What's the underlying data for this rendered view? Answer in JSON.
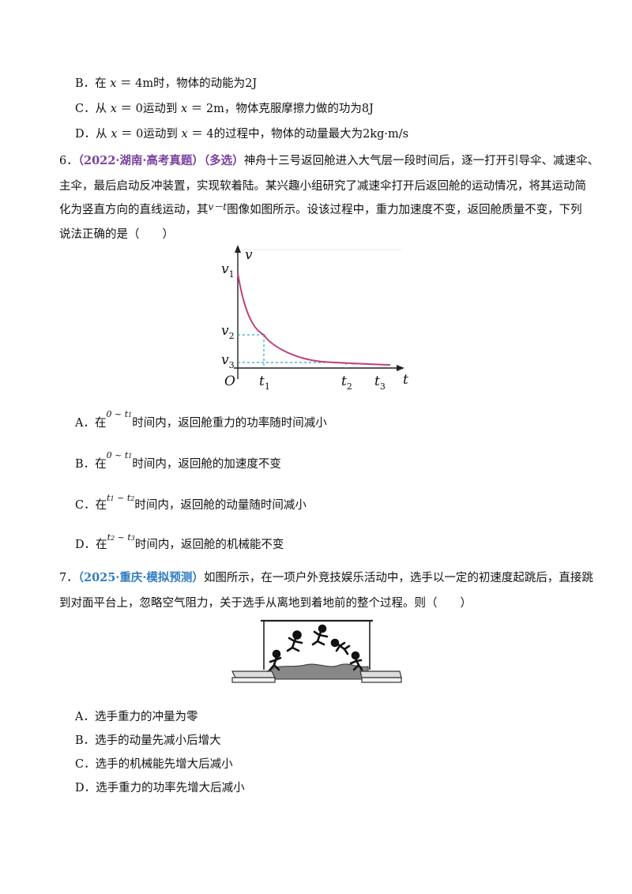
{
  "q5": {
    "opts": [
      {
        "label": "B．",
        "text_a": "在 ",
        "x": "x",
        "text_b": " ＝ 4m时，物体的动能为2J"
      },
      {
        "label": "C．",
        "text_a": "从 ",
        "x": "x",
        "text_b": " ＝ 0运动到 ",
        "x2": "x",
        "text_c": " ＝ 2m，物体克服摩擦力做的功为8J"
      },
      {
        "label": "D．",
        "text_a": "从 ",
        "x": "x",
        "text_b": " ＝ 0运动到 ",
        "x2": "x",
        "text_c": " ＝ 4的过程中，物体的动量最大为2kg·m/s"
      }
    ]
  },
  "q6": {
    "num": "6．",
    "source": "（2022·湖南·高考真题）",
    "tag": "（多选）",
    "stem1": "神舟十三号返回舱进入大气层一段时间后，逐一打开引导伞、减速伞、",
    "stem2": "主伞，最后启动反冲装置，实现软着陆。某兴趣小组研究了减速伞打开后返回舱的运动情况，将其运动简",
    "stem3a": "化为竖直方向的直线运动，其",
    "stem3_math": "v－t",
    "stem3b": "图像如图所示。设该过程中，重力加速度不变，返回舱质量不变，下列",
    "stem4": "说法正确的是（　　）",
    "graph": {
      "y_axis": "v",
      "x_axis": "t",
      "origin": "O",
      "v1": "v",
      "v1s": "1",
      "v2": "v",
      "v2s": "2",
      "v3": "v",
      "v3s": "3",
      "t1": "t",
      "t1s": "1",
      "t2": "t",
      "t2s": "2",
      "t3": "t",
      "t3s": "3",
      "curve_color": "#c0407a",
      "dash_color": "#2aa6c8"
    },
    "opts": [
      {
        "label": "A．",
        "pre": "在",
        "m1": "0 ~ t",
        "m1s": "1",
        "post": "时间内，返回舱重力的功率随时间减小"
      },
      {
        "label": "B．",
        "pre": "在",
        "m1": "0 ~ t",
        "m1s": "1",
        "post": "时间内，返回舱的加速度不变"
      },
      {
        "label": "C．",
        "pre": "在",
        "m1": "t",
        "m1s": "1",
        "mid": " ~ t",
        "m2s": "2",
        "post": "时间内，返回舱的动量随时间减小"
      },
      {
        "label": "D．",
        "pre": "在",
        "m1": "t",
        "m1s": "2",
        "mid": " ~ t",
        "m2s": "3",
        "post": "时间内，返回舱的机械能不变"
      }
    ]
  },
  "q7": {
    "num": "7．",
    "source": "（2025·重庆·模拟预测）",
    "stem1": "如图所示，在一项户外竞技娱乐活动中，选手以一定的初速度起跳后，直接跳",
    "stem2": "到对面平台上，忽略空气阻力，关于选手从离地到着地前的整个过程。则（　　）",
    "opts": [
      {
        "label": "A．",
        "text": "选手重力的冲量为零"
      },
      {
        "label": "B．",
        "text": "选手的动量先减小后增大"
      },
      {
        "label": "C．",
        "text": "选手的机械能先增大后减小"
      },
      {
        "label": "D．",
        "text": "选手重力的功率先增大后减小"
      }
    ]
  }
}
